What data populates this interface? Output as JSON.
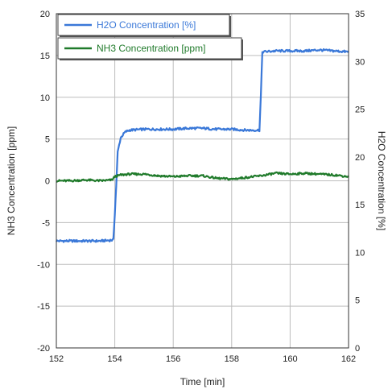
{
  "chart_data": {
    "type": "line",
    "xlabel": "Time [min]",
    "ylabel_left": "NH3 Concentration [ppm]",
    "ylabel_right": "H2O Concentration [%]",
    "xlim": [
      152,
      162
    ],
    "ylim_left": [
      -20,
      20
    ],
    "ylim_right": [
      0,
      35
    ],
    "x_ticks": [
      "152",
      "154",
      "156",
      "158",
      "160",
      "162"
    ],
    "y_left_ticks": [
      "20",
      "15",
      "10",
      "5",
      "0",
      "-5",
      "-10",
      "-15",
      "-20"
    ],
    "y_right_ticks": [
      "35",
      "30",
      "25",
      "20",
      "15",
      "10",
      "5",
      "0"
    ],
    "grid": true,
    "legend_position": "top-left",
    "series": [
      {
        "name": "H2O Concentration [%]",
        "axis": "right",
        "color": "#3a78d8",
        "x": [
          152,
          152.5,
          153,
          153.5,
          153.95,
          154.0,
          154.05,
          154.1,
          154.2,
          154.35,
          154.5,
          155,
          155.5,
          156,
          156.5,
          157,
          157.5,
          158,
          158.5,
          158.95,
          159.0,
          159.05,
          159.5,
          160,
          160.5,
          161,
          161.5,
          162
        ],
        "y": [
          11.2,
          11.2,
          11.2,
          11.2,
          11.3,
          14.0,
          17.0,
          20.5,
          22.0,
          22.6,
          22.8,
          22.9,
          22.9,
          22.9,
          23.0,
          23.0,
          22.9,
          22.9,
          22.8,
          22.8,
          26.5,
          31.0,
          31.1,
          31.1,
          31.1,
          31.2,
          31.1,
          31.0
        ]
      },
      {
        "name": "NH3 Concentration [ppm]",
        "axis": "left",
        "color": "#1f7a2a",
        "x": [
          152,
          152.5,
          153,
          153.5,
          153.9,
          154.0,
          154.2,
          154.5,
          155,
          155.5,
          156,
          156.5,
          157,
          157.5,
          158,
          158.5,
          159,
          159.5,
          160,
          160.5,
          161,
          161.5,
          162
        ],
        "y": [
          0.0,
          0.0,
          0.1,
          0.0,
          0.1,
          0.5,
          0.7,
          0.8,
          0.8,
          0.6,
          0.5,
          0.6,
          0.6,
          0.3,
          0.2,
          0.4,
          0.6,
          0.9,
          0.8,
          0.9,
          0.8,
          0.7,
          0.5
        ]
      }
    ]
  }
}
